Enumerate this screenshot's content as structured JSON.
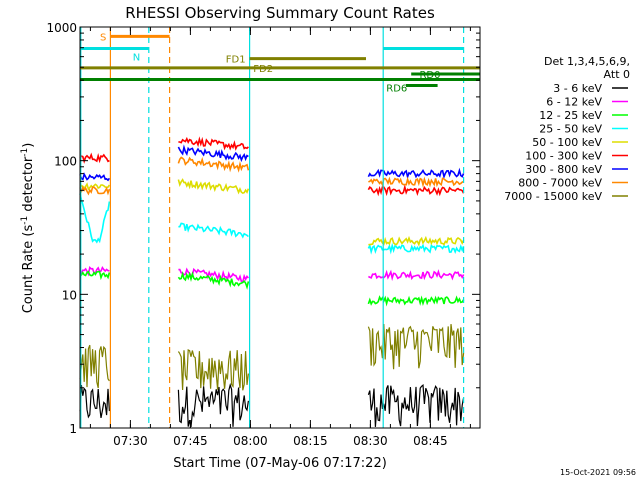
{
  "chart_data": {
    "type": "line",
    "title": "RHESSI Observing Summary Count Rates",
    "xlabel": "Start Time (07-May-06 07:17:22)",
    "ylabel_main": "Count Rate (s",
    "ylabel_sup1": "-1",
    "ylabel_mid": " detector",
    "ylabel_sup2": "-1",
    "ylabel_end": ")",
    "yscale": "log",
    "ylim": [
      1,
      1000
    ],
    "xlim_minutes": [
      0,
      100
    ],
    "x_ticks": [
      {
        "label": "07:30",
        "minute": 12.6
      },
      {
        "label": "07:45",
        "minute": 27.6
      },
      {
        "label": "08:00",
        "minute": 42.6
      },
      {
        "label": "08:15",
        "minute": 57.6
      },
      {
        "label": "08:30",
        "minute": 72.6
      },
      {
        "label": "08:45",
        "minute": 87.6
      }
    ],
    "y_ticks": [
      {
        "label": "1",
        "value": 1
      },
      {
        "label": "10",
        "value": 10
      },
      {
        "label": "100",
        "value": 100
      },
      {
        "label": "1000",
        "value": 1000
      }
    ],
    "legend_header": [
      "Det 1,3,4,5,6,9,",
      "Att 0"
    ],
    "series": [
      {
        "name": "3 - 6 keV",
        "color": "#000000",
        "levels": [
          1.8,
          1.5,
          1.9
        ]
      },
      {
        "name": "6 - 12 keV",
        "color": "#ff00ff",
        "levels": [
          15,
          13,
          14
        ]
      },
      {
        "name": "12 - 25 keV",
        "color": "#00ff00",
        "levels": [
          14,
          12,
          9
        ]
      },
      {
        "name": "25 - 50 keV",
        "color": "#00ffff",
        "levels": [
          35,
          28,
          22
        ]
      },
      {
        "name": "50 - 100 keV",
        "color": "#dddd00",
        "levels": [
          65,
          60,
          25
        ]
      },
      {
        "name": "100 - 300 keV",
        "color": "#ff0000",
        "levels": [
          105,
          125,
          60
        ]
      },
      {
        "name": "300 - 800 keV",
        "color": "#0000ff",
        "levels": [
          75,
          105,
          80
        ]
      },
      {
        "name": "800 - 7000 keV",
        "color": "#ff8800",
        "levels": [
          60,
          88,
          70
        ]
      },
      {
        "name": "7000 - 15000 keV",
        "color": "#808000",
        "levels": [
          3.5,
          3.2,
          5
        ]
      }
    ],
    "observing_intervals_minutes": [
      [
        0,
        7.6
      ],
      [
        24.6,
        42.2
      ],
      [
        72.1,
        95.9
      ]
    ],
    "vertical_markers": [
      {
        "minute": 0.2,
        "color": "#00e0e0",
        "style": "solid"
      },
      {
        "minute": 7.6,
        "color": "#ff8800",
        "style": "solid"
      },
      {
        "minute": 17.2,
        "color": "#00e0e0",
        "style": "dashed"
      },
      {
        "minute": 22.4,
        "color": "#ff8800",
        "style": "dashed"
      },
      {
        "minute": 42.4,
        "color": "#00e0e0",
        "style": "solid"
      },
      {
        "minute": 75.8,
        "color": "#00e0e0",
        "style": "solid"
      },
      {
        "minute": 95.9,
        "color": "#00e0e0",
        "style": "dashed"
      }
    ],
    "flag_bars": [
      {
        "label": "S",
        "color": "#ff8800",
        "start": 7.6,
        "end": 22.4,
        "value": 850,
        "label_pos": "left"
      },
      {
        "label": "N",
        "color": "#00e0e0",
        "start": 0,
        "end": 17.2,
        "value": 690,
        "label_pos": "right"
      },
      {
        "label": "",
        "color": "#00e0e0",
        "start": 75.8,
        "end": 95.9,
        "value": 690,
        "label_pos": "none"
      },
      {
        "label": "FD1",
        "color": "#808000",
        "start": 42.4,
        "end": 71.5,
        "value": 580,
        "label_pos": "left"
      },
      {
        "label": "FD2",
        "color": "#808000",
        "start": 0,
        "end": 100,
        "value": 495,
        "label_pos": "mid"
      },
      {
        "label": "RD0",
        "color": "#008000",
        "start": 82.8,
        "end": 100,
        "value": 445,
        "label_pos": "mid"
      },
      {
        "label": "RD6",
        "color": "#008000",
        "start": 0,
        "end": 100,
        "value": 405,
        "label_pos": "below"
      },
      {
        "label": "",
        "color": "#008000",
        "start": 81.5,
        "end": 89.4,
        "value": 365,
        "label_pos": "none"
      }
    ]
  },
  "footer": {
    "timestamp": "15-Oct-2021 09:56"
  }
}
